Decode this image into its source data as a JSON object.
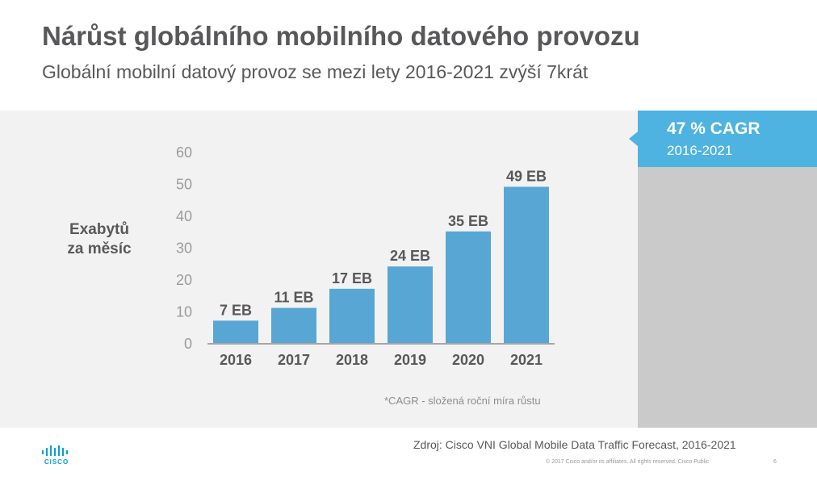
{
  "header": {
    "title": "Nárůst globálního mobilního datového provozu",
    "subtitle": "Globální mobilní datový provoz se mezi lety 2016-2021 zvýší 7krát"
  },
  "cagr_box": {
    "value": "47 % CAGR",
    "period": "2016-2021",
    "color": "#4eb3e0"
  },
  "footnote": "*CAGR - složená roční míra růstu",
  "footer": {
    "source": "Zdroj: Cisco VNI Global Mobile Data Traffic Forecast, 2016-2021",
    "copyright": "© 2017  Cisco and/or its affiliates. All rights reserved.   Cisco Public",
    "page_number": "6",
    "logo_text": "CISCO",
    "logo_color": "#049fd9"
  },
  "chart_data": {
    "type": "bar",
    "ylabel": [
      "Exabytů",
      "za měsíc"
    ],
    "categories": [
      "2016",
      "2017",
      "2018",
      "2019",
      "2020",
      "2021"
    ],
    "values": [
      7,
      11,
      17,
      24,
      35,
      49
    ],
    "data_labels": [
      "7 EB",
      "11 EB",
      "17 EB",
      "24 EB",
      "35 EB",
      "49 EB"
    ],
    "yticks": [
      "0",
      "10",
      "20",
      "30",
      "40",
      "50",
      "60"
    ],
    "ylim": [
      0,
      60
    ],
    "grid": false,
    "bar_color": "#58a6d4"
  }
}
